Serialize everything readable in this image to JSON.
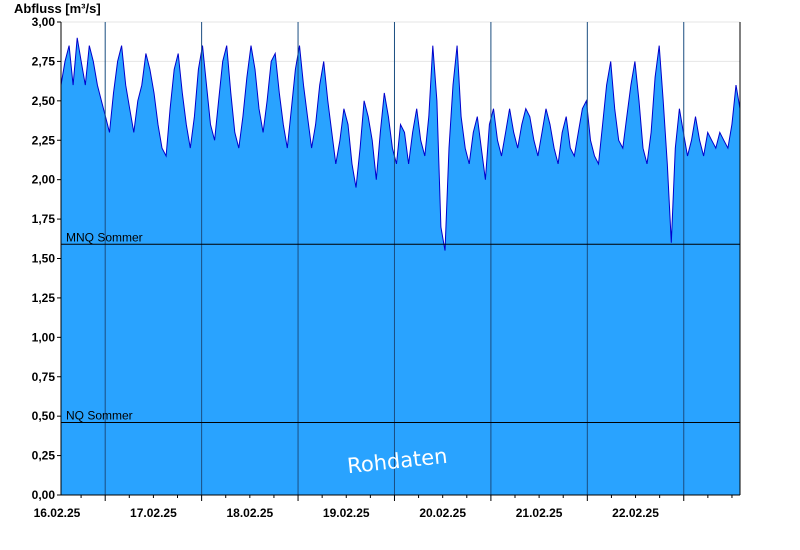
{
  "chart_data": {
    "type": "area",
    "ylabel": "Abfluss [m³/s]",
    "xlabel": "",
    "title": "",
    "ylim": [
      0,
      3.0
    ],
    "yticks": [
      "0,00",
      "0,25",
      "0,50",
      "0,75",
      "1,00",
      "1,25",
      "1,50",
      "1,75",
      "2,00",
      "2,25",
      "2,50",
      "2,75",
      "3,00"
    ],
    "ytick_values": [
      0,
      0.25,
      0.5,
      0.75,
      1.0,
      1.25,
      1.5,
      1.75,
      2.0,
      2.25,
      2.5,
      2.75,
      3.0
    ],
    "x_start": "15.02.25 13:00",
    "x_end": "22.02.25 14:00",
    "xticks": [
      "16.02.25",
      "17.02.25",
      "18.02.25",
      "19.02.25",
      "20.02.25",
      "21.02.25",
      "22.02.25"
    ],
    "day_boundaries_hours_from_start": [
      11,
      35,
      59,
      83,
      107,
      131,
      155
    ],
    "total_hours": 169,
    "series": [
      {
        "name": "",
        "color_fill": "#29a3ff",
        "color_line": "#0000cc",
        "sample_interval_minutes": 60,
        "values": [
          2.6,
          2.75,
          2.85,
          2.6,
          2.9,
          2.75,
          2.6,
          2.85,
          2.75,
          2.6,
          2.5,
          2.4,
          2.3,
          2.55,
          2.75,
          2.85,
          2.6,
          2.45,
          2.3,
          2.5,
          2.6,
          2.8,
          2.7,
          2.55,
          2.35,
          2.2,
          2.15,
          2.45,
          2.7,
          2.8,
          2.55,
          2.35,
          2.2,
          2.4,
          2.7,
          2.85,
          2.6,
          2.35,
          2.25,
          2.5,
          2.75,
          2.85,
          2.55,
          2.3,
          2.2,
          2.4,
          2.65,
          2.85,
          2.7,
          2.45,
          2.3,
          2.5,
          2.75,
          2.8,
          2.55,
          2.35,
          2.2,
          2.45,
          2.7,
          2.85,
          2.6,
          2.4,
          2.2,
          2.35,
          2.6,
          2.75,
          2.5,
          2.3,
          2.1,
          2.25,
          2.45,
          2.35,
          2.1,
          1.95,
          2.2,
          2.5,
          2.4,
          2.25,
          2.0,
          2.3,
          2.55,
          2.4,
          2.2,
          2.1,
          2.35,
          2.3,
          2.1,
          2.3,
          2.45,
          2.25,
          2.15,
          2.4,
          2.85,
          2.5,
          1.7,
          1.55,
          2.2,
          2.6,
          2.85,
          2.4,
          2.2,
          2.1,
          2.3,
          2.4,
          2.2,
          2.0,
          2.35,
          2.45,
          2.25,
          2.15,
          2.3,
          2.45,
          2.3,
          2.2,
          2.35,
          2.45,
          2.4,
          2.25,
          2.15,
          2.3,
          2.45,
          2.35,
          2.2,
          2.1,
          2.3,
          2.4,
          2.2,
          2.15,
          2.3,
          2.45,
          2.5,
          2.25,
          2.15,
          2.1,
          2.35,
          2.6,
          2.75,
          2.45,
          2.25,
          2.2,
          2.4,
          2.6,
          2.75,
          2.5,
          2.2,
          2.1,
          2.3,
          2.65,
          2.85,
          2.5,
          2.1,
          1.6,
          2.2,
          2.45,
          2.3,
          2.15,
          2.25,
          2.4,
          2.25,
          2.15,
          2.3,
          2.25,
          2.2,
          2.3,
          2.25,
          2.2,
          2.35,
          2.6,
          2.45
        ]
      }
    ],
    "reference_lines": [
      {
        "label": "MNQ Sommer",
        "value": 1.59
      },
      {
        "label": "NQ Sommer",
        "value": 0.46
      }
    ],
    "grid": "vertical-day-lines",
    "watermark": "Rohdaten"
  }
}
